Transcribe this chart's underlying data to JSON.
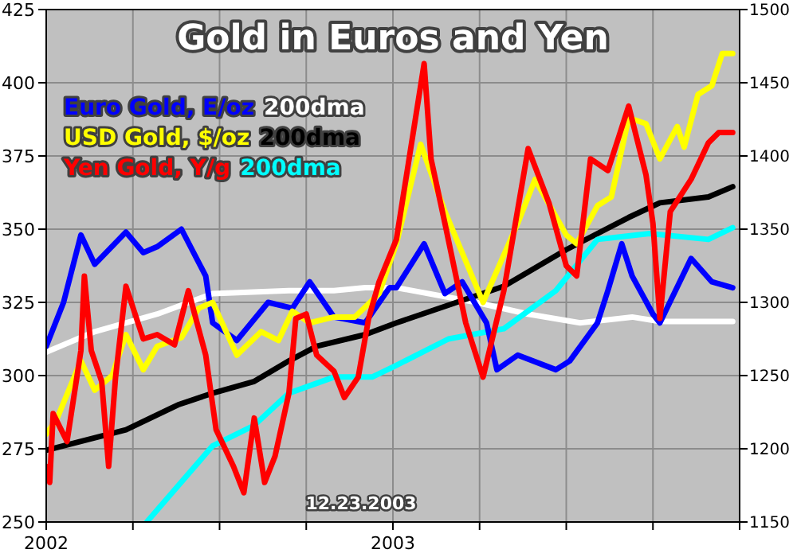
{
  "chart_data": {
    "type": "line",
    "title": "Gold in Euros and Yen",
    "xlim": [
      2002,
      2004
    ],
    "xticks": [
      2002,
      {
        "value": 2002.25,
        "label": null
      },
      {
        "value": 2002.5,
        "label": null
      },
      {
        "value": 2002.75,
        "label": null
      },
      2003,
      {
        "value": 2003.25,
        "label": null
      },
      {
        "value": 2003.5,
        "label": null
      },
      {
        "value": 2003.75,
        "label": null
      },
      {
        "value": 2004,
        "label": null
      }
    ],
    "ylim": [
      250,
      425
    ],
    "yticks": [
      250,
      275,
      300,
      325,
      350,
      375,
      400,
      425
    ],
    "y2lim": [
      1150,
      1500
    ],
    "y2ticks": [
      1150,
      1200,
      1250,
      1300,
      1350,
      1400,
      1450,
      1500
    ],
    "grid": true,
    "legend": "top left",
    "annotations": [
      "12.23.2003"
    ],
    "series": [
      {
        "name": "Euro Gold, E/oz",
        "color": "#0000ff",
        "x": [
          2002.0,
          2002.05,
          2002.1,
          2002.14,
          2002.23,
          2002.28,
          2002.32,
          2002.39,
          2002.46,
          2002.48,
          2002.55,
          2002.64,
          2002.71,
          2002.76,
          2002.83,
          2002.92,
          2002.99,
          2003.01,
          2003.09,
          2003.15,
          2003.2,
          2003.27,
          2003.3,
          2003.36,
          2003.47,
          2003.51,
          2003.59,
          2003.62,
          2003.66,
          2003.69,
          2003.75,
          2003.77,
          2003.86,
          2003.92,
          2003.98
        ],
        "values": [
          310,
          325,
          348,
          338,
          349,
          342,
          344,
          350,
          334,
          318,
          312,
          325,
          323,
          332,
          320,
          318,
          330,
          330,
          345,
          328,
          332,
          318,
          302,
          307,
          302,
          305,
          318,
          329,
          345,
          334,
          321,
          318,
          340,
          332,
          330
        ]
      },
      {
        "name": "200dma",
        "color": "#ffffff",
        "x": [
          2002.0,
          2002.14,
          2002.32,
          2002.48,
          2002.7,
          2002.83,
          2002.92,
          2003.01,
          2003.24,
          2003.39,
          2003.54,
          2003.69,
          2003.77,
          2003.98
        ],
        "values": [
          308,
          315,
          321,
          328,
          329,
          329,
          330,
          330,
          325,
          321,
          318,
          320,
          318.5,
          318.5
        ]
      },
      {
        "name": "USD Gold, $/oz",
        "color": "#ffff00",
        "x": [
          2002.0,
          2002.03,
          2002.1,
          2002.14,
          2002.19,
          2002.23,
          2002.28,
          2002.32,
          2002.39,
          2002.44,
          2002.48,
          2002.55,
          2002.62,
          2002.67,
          2002.71,
          2002.76,
          2002.83,
          2002.89,
          2002.96,
          2003.01,
          2003.08,
          2003.15,
          2003.26,
          2003.36,
          2003.41,
          2003.5,
          2003.53,
          2003.59,
          2003.63,
          2003.68,
          2003.73,
          2003.77,
          2003.82,
          2003.84,
          2003.88,
          2003.92,
          2003.95,
          2003.98
        ],
        "values": [
          280,
          285,
          305,
          295,
          300,
          314,
          302,
          310,
          313,
          323,
          325,
          307,
          315,
          312,
          322,
          318,
          320,
          320,
          328,
          345,
          379,
          356,
          325,
          352,
          367,
          348,
          345,
          358,
          361,
          388,
          386,
          374,
          385,
          378,
          396,
          399,
          410,
          410
        ]
      },
      {
        "name": "200dma",
        "color": "#000000",
        "x": [
          2002.0,
          2002.23,
          2002.38,
          2002.48,
          2002.6,
          2002.7,
          2002.78,
          2002.92,
          2003.01,
          2003.32,
          2003.5,
          2003.68,
          2003.77,
          2003.91,
          2003.98
        ],
        "values": [
          274.5,
          281.5,
          290,
          294,
          298,
          305,
          310,
          314,
          318,
          330.5,
          343,
          354,
          359,
          361,
          364.5
        ]
      },
      {
        "name": "Yen Gold, Y/g",
        "color": "#ff0000",
        "axis": "y2",
        "x": [
          2002.0,
          2002.01,
          2002.02,
          2002.06,
          2002.1,
          2002.11,
          2002.13,
          2002.16,
          2002.18,
          2002.2,
          2002.23,
          2002.28,
          2002.32,
          2002.37,
          2002.41,
          2002.46,
          2002.49,
          2002.54,
          2002.57,
          2002.6,
          2002.63,
          2002.66,
          2002.7,
          2002.72,
          2002.75,
          2002.78,
          2002.83,
          2002.86,
          2002.9,
          2002.93,
          2002.96,
          2003.01,
          2003.09,
          2003.11,
          2003.15,
          2003.21,
          2003.26,
          2003.32,
          2003.39,
          2003.45,
          2003.5,
          2003.53,
          2003.57,
          2003.62,
          2003.68,
          2003.73,
          2003.75,
          2003.77,
          2003.8,
          2003.86,
          2003.91,
          2003.94,
          2003.98
        ],
        "values": [
          1188,
          1177,
          1224,
          1205,
          1267,
          1318,
          1267,
          1246,
          1188,
          1249,
          1311,
          1275,
          1278,
          1271,
          1308,
          1264,
          1213,
          1188,
          1170,
          1221,
          1177,
          1195,
          1238,
          1289,
          1292,
          1264,
          1253,
          1235,
          1249,
          1289,
          1314,
          1343,
          1463,
          1398,
          1354,
          1286,
          1249,
          1308,
          1405,
          1368,
          1325,
          1318,
          1398,
          1390,
          1434,
          1387,
          1354,
          1289,
          1362,
          1384,
          1409,
          1416,
          1416
        ]
      },
      {
        "name": "200dma",
        "color": "#00ffff",
        "axis": "y2",
        "x": [
          2002.29,
          2002.48,
          2002.6,
          2002.7,
          2002.83,
          2002.94,
          2003.01,
          2003.16,
          2003.32,
          2003.47,
          2003.59,
          2003.74,
          2003.91,
          2003.98
        ],
        "values": [
          1150,
          1202,
          1216,
          1238,
          1249,
          1249,
          1257,
          1275,
          1282,
          1308,
          1343,
          1347,
          1343,
          1351
        ]
      }
    ]
  }
}
